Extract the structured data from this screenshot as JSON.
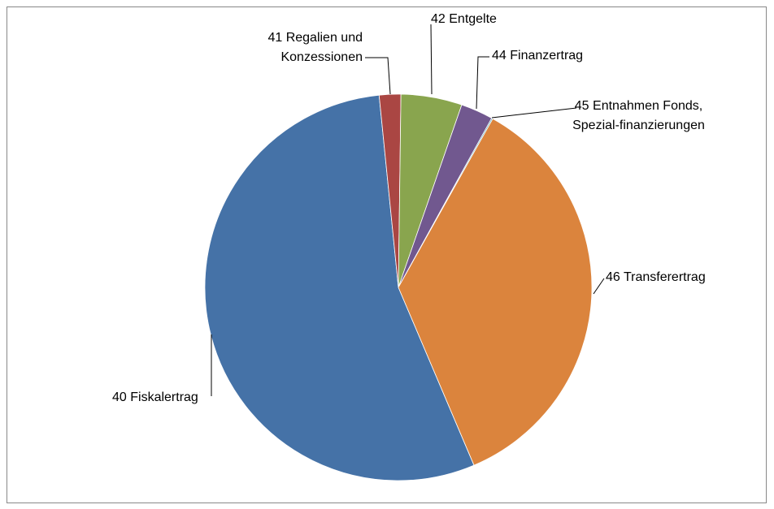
{
  "chart_data": {
    "type": "pie",
    "categories": [
      "40 Fiskalertrag",
      "41 Regalien und Konzessionen",
      "42 Entgelte",
      "44 Finanzertrag",
      "45 Entnahmen Fonds, Spezial-finanzierungen",
      "46 Transferertrag"
    ],
    "values": [
      54.8,
      1.8,
      5.1,
      2.7,
      0.1,
      35.5
    ],
    "colors": [
      "#4572a7",
      "#aa4643",
      "#89a54e",
      "#71588f",
      "#4198af",
      "#db843d"
    ]
  }
}
